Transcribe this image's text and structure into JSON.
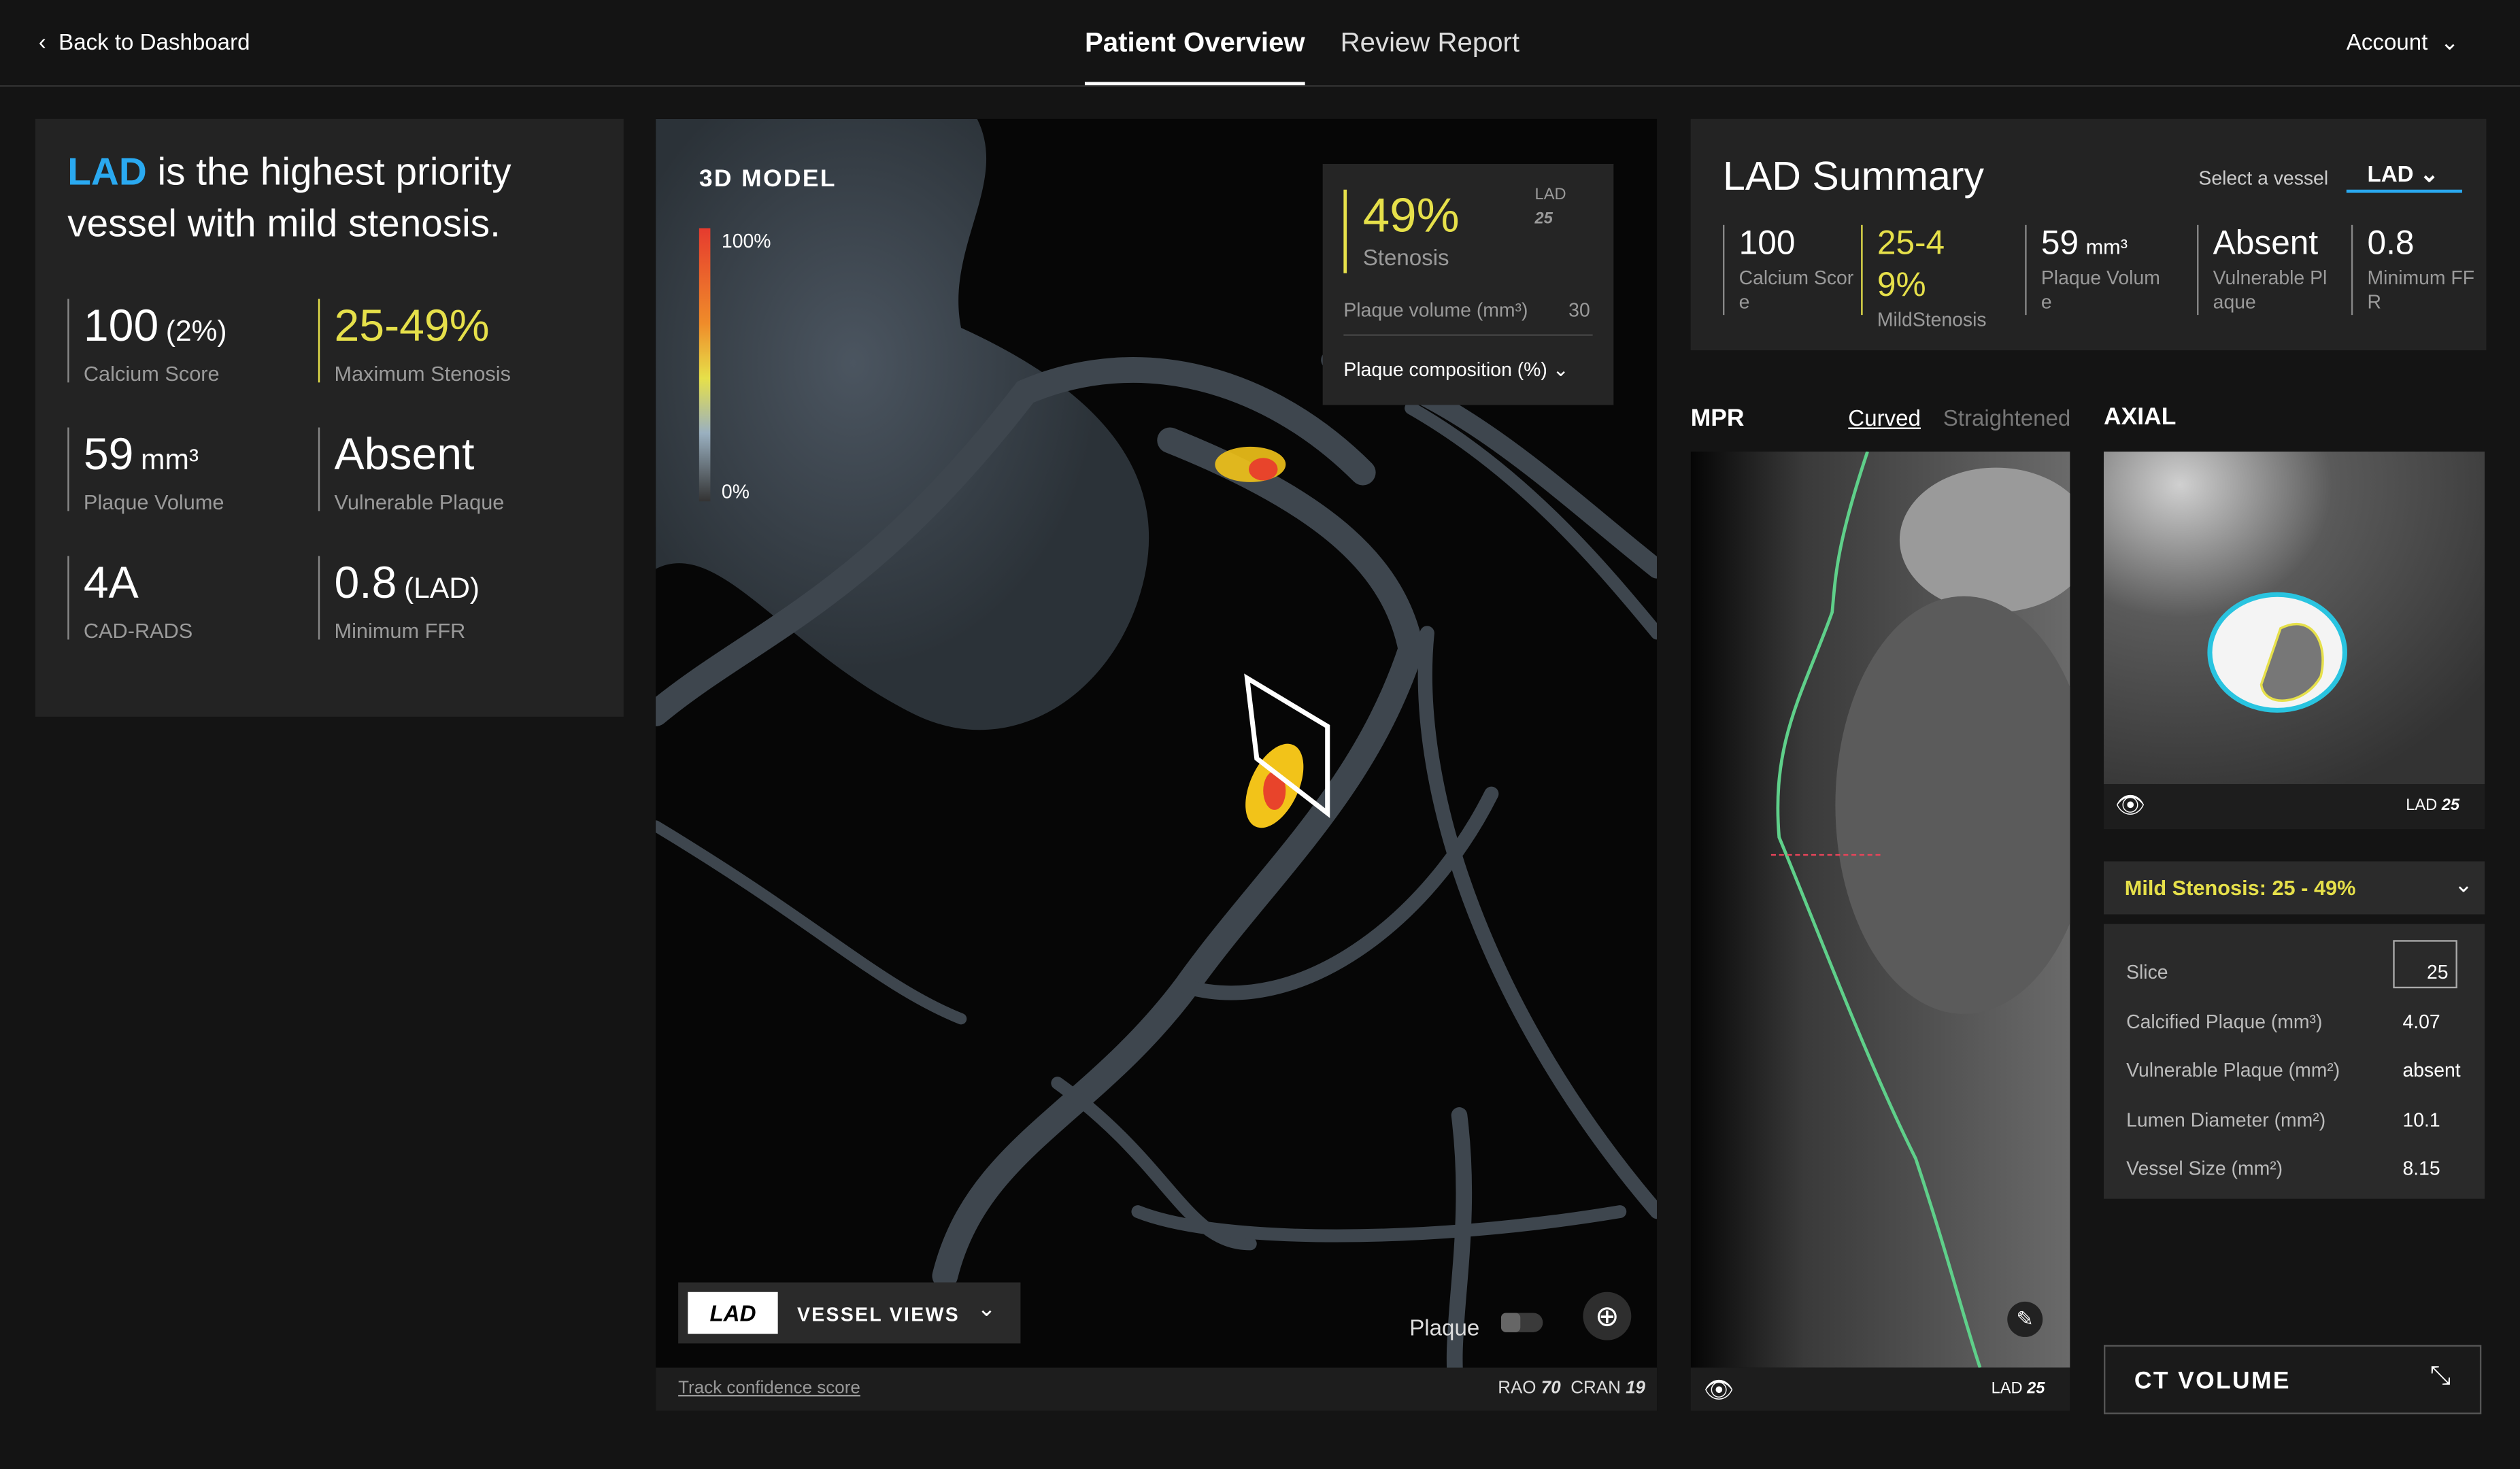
{
  "nav": {
    "back": "Back to Dashboard",
    "tabs": [
      "Patient Overview",
      "Review Report"
    ],
    "account": "Account"
  },
  "priority": {
    "vessel": "LAD",
    "message": "is the highest priority vessel with mild stenosis.",
    "metrics": [
      {
        "value": "100",
        "unit": "(2%)",
        "label": "Calcium Score"
      },
      {
        "value": "25-49%",
        "label": "Maximum Stenosis"
      },
      {
        "value": "59",
        "unit": "mm³",
        "label": "Plaque Volume"
      },
      {
        "value": "Absent",
        "label": "Vulnerable Plaque"
      },
      {
        "value": "4A",
        "label": "CAD-RADS"
      },
      {
        "value": "0.8",
        "unit": "(LAD)",
        "label": "Minimum FFR"
      }
    ]
  },
  "model": {
    "title": "3D MODEL",
    "scale": [
      "100%",
      "0%"
    ],
    "stenosis": {
      "value": "49%",
      "label": "Stenosis",
      "vessel": "LAD",
      "slice": "25"
    },
    "plaque_volume": {
      "label": "Plaque volume (mm³)",
      "value": "30"
    },
    "composition": "Plaque composition (%)",
    "vessel_button": "LAD",
    "vessel_views": "VESSEL VIEWS",
    "plaque_toggle": "Plaque",
    "confidence": "Track confidence score",
    "view": {
      "rao_label": "RAO",
      "rao": "70",
      "cran_label": "CRAN",
      "cran": "19"
    }
  },
  "summary": {
    "title": "LAD Summary",
    "select_label": "Select a vessel",
    "selected": "LAD",
    "metrics": [
      {
        "value": "100",
        "label": "Calcium Score"
      },
      {
        "value": "25-49%",
        "label": "MildStenosis"
      },
      {
        "value": "59",
        "unit": "mm³",
        "label": "Plaque Volume"
      },
      {
        "value": "Absent",
        "label": "Vulnerable Plaque"
      },
      {
        "value": "0.8",
        "label": "Minimum FFR"
      }
    ]
  },
  "mpr": {
    "title": "MPR",
    "tabs": [
      "Curved",
      "Straightened"
    ],
    "vessel": "LAD",
    "slice": "25"
  },
  "axial": {
    "title": "AXIAL",
    "vessel": "LAD",
    "slice": "25",
    "stenosis": "Mild Stenosis: 25 - 49%",
    "rows": [
      [
        "Slice",
        "25"
      ],
      [
        "Calcified Plaque (mm³)",
        "4.07"
      ],
      [
        "Vulnerable Plaque (mm²)",
        "absent"
      ],
      [
        "Lumen Diameter (mm²)",
        "10.1"
      ],
      [
        "Vessel Size (mm²)",
        "8.15"
      ]
    ],
    "ct_volume": "CT VOLUME"
  }
}
